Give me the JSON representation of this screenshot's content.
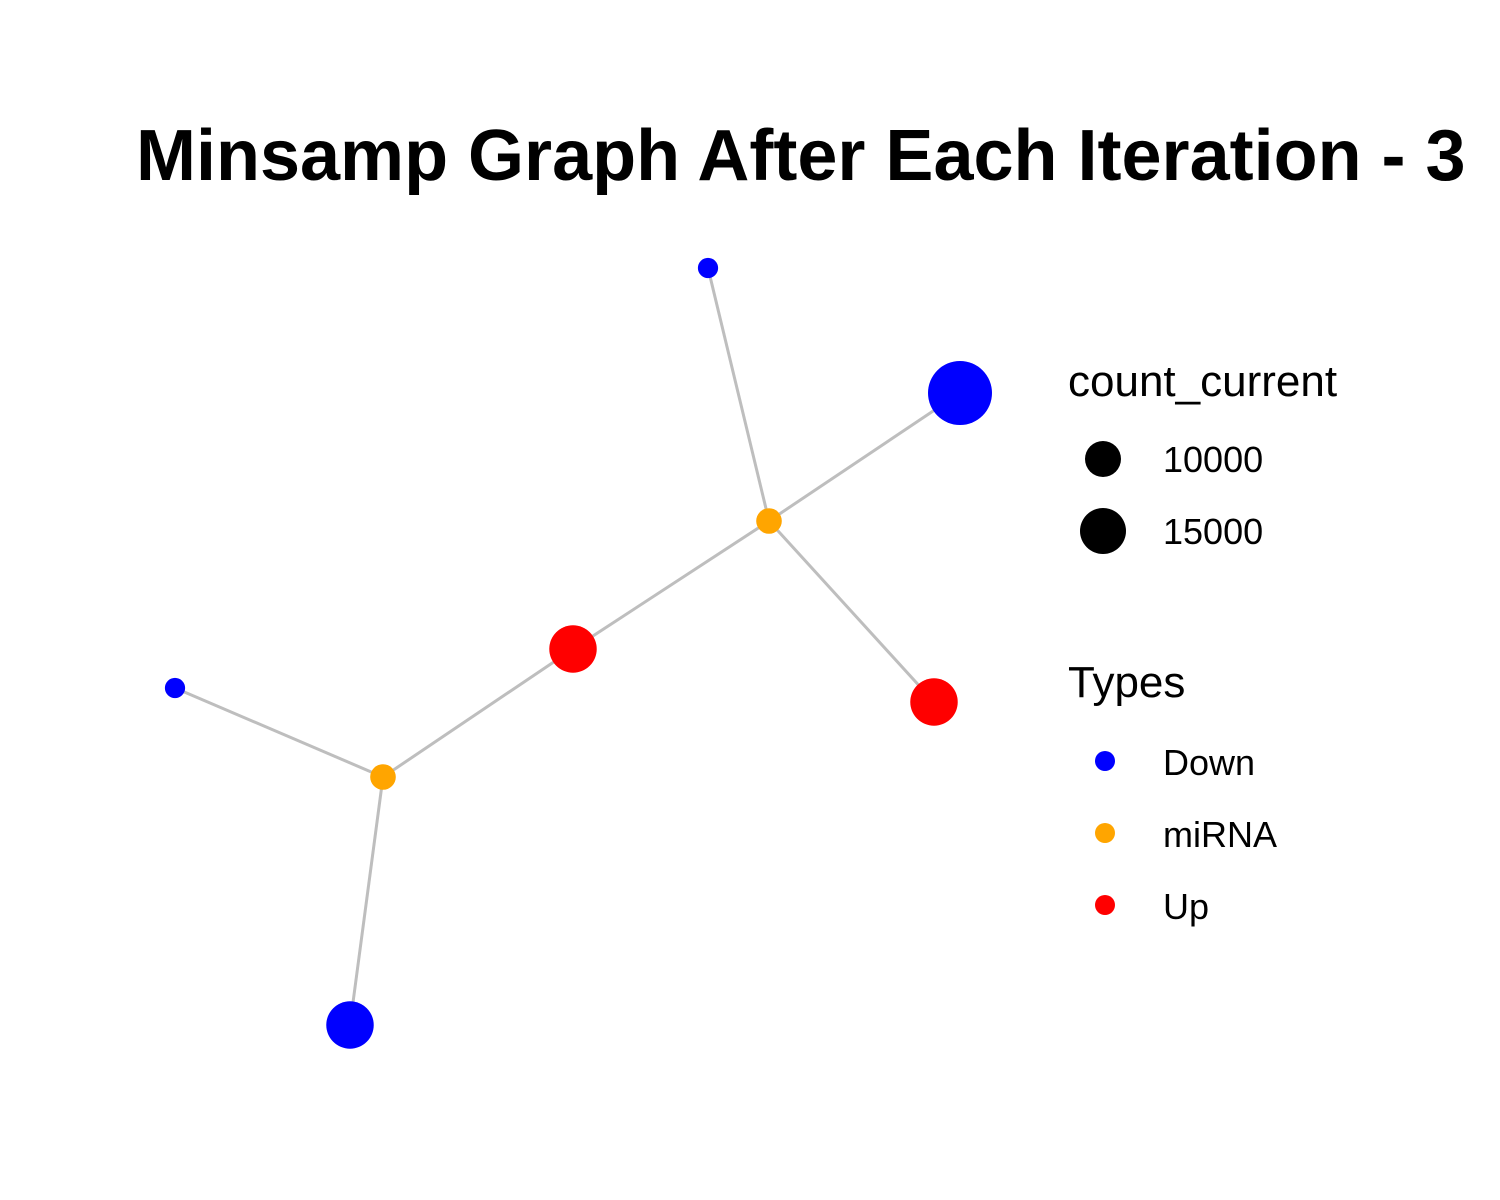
{
  "title": "Minsamp Graph After Each Iteration - 3",
  "colors": {
    "Down": "#0000ff",
    "miRNA": "#ffa500",
    "Up": "#ff0000",
    "edge": "#bebebe",
    "size_key": "#000000"
  },
  "graph": {
    "nodes": [
      {
        "id": "n1",
        "type": "Down",
        "count_current": 9000
      },
      {
        "id": "n2",
        "type": "Down",
        "count_current": 18000
      },
      {
        "id": "n3",
        "type": "miRNA",
        "count_current": 9600
      },
      {
        "id": "n4",
        "type": "Up",
        "count_current": 13500
      },
      {
        "id": "n5",
        "type": "Up",
        "count_current": 13500
      },
      {
        "id": "n6",
        "type": "Down",
        "count_current": 9000
      },
      {
        "id": "n7",
        "type": "miRNA",
        "count_current": 9600
      },
      {
        "id": "n8",
        "type": "Down",
        "count_current": 13500
      }
    ],
    "edges": [
      [
        "n1",
        "n3"
      ],
      [
        "n2",
        "n3"
      ],
      [
        "n3",
        "n4"
      ],
      [
        "n3",
        "n5"
      ],
      [
        "n4",
        "n7"
      ],
      [
        "n6",
        "n7"
      ],
      [
        "n7",
        "n8"
      ]
    ]
  },
  "legend": {
    "size": {
      "title": "count_current",
      "entries": [
        {
          "label": "10000",
          "value": 10000
        },
        {
          "label": "15000",
          "value": 15000
        }
      ]
    },
    "color": {
      "title": "Types",
      "entries": [
        {
          "label": "Down",
          "type": "Down"
        },
        {
          "label": "miRNA",
          "type": "miRNA"
        },
        {
          "label": "Up",
          "type": "Up"
        }
      ]
    }
  }
}
